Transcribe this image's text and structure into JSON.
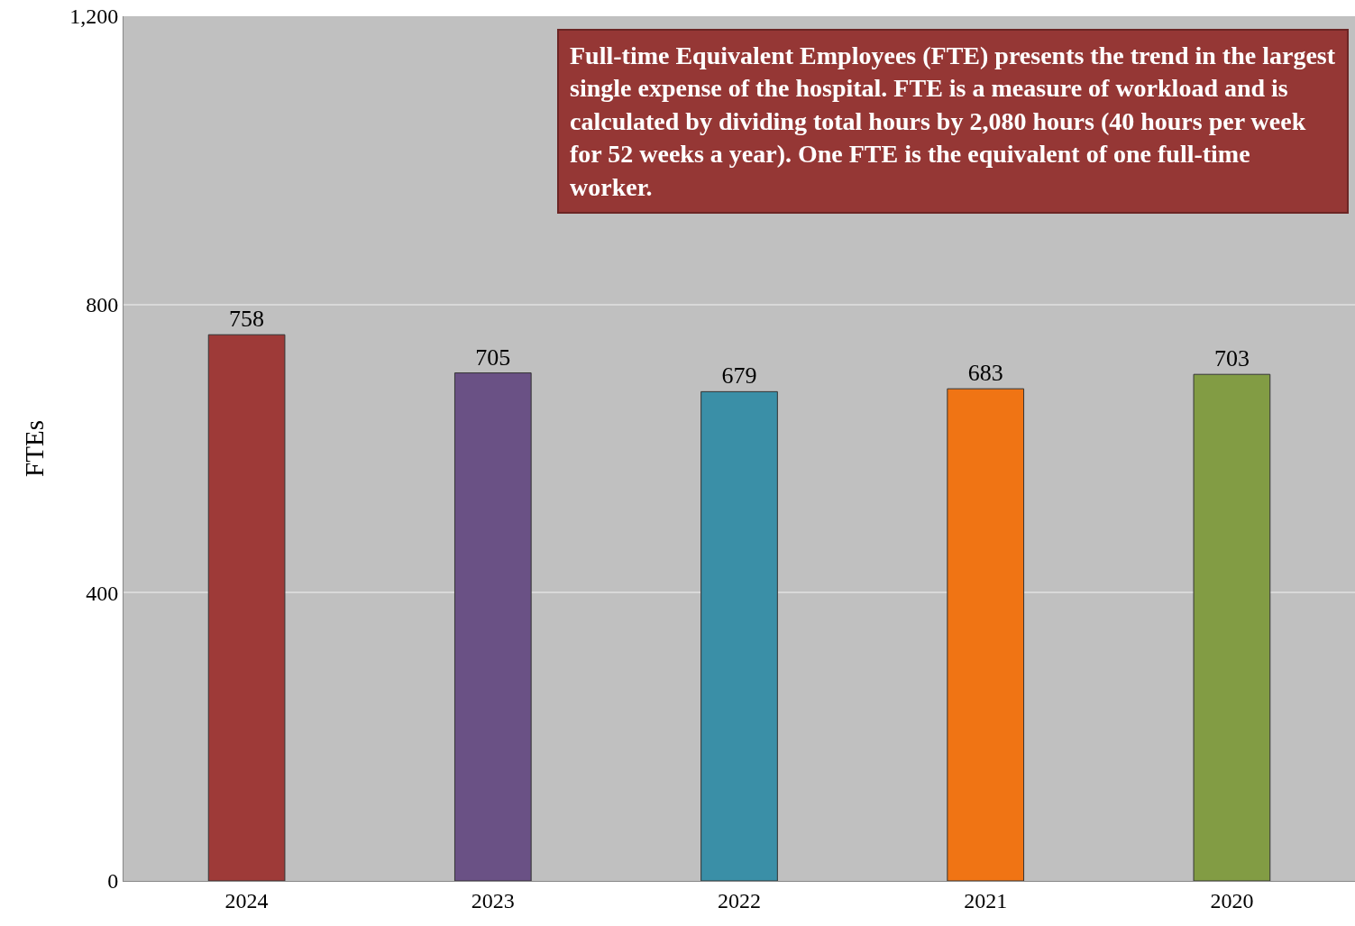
{
  "chart_data": {
    "type": "bar",
    "ylabel": "FTEs",
    "categories": [
      "2024",
      "2023",
      "2022",
      "2021",
      "2020"
    ],
    "values": [
      758,
      705,
      679,
      683,
      703
    ],
    "colors": [
      "#9e3a38",
      "#6a5185",
      "#3a8fa7",
      "#f07414",
      "#829c44"
    ],
    "data_labels": true,
    "ylim": [
      0,
      1200
    ],
    "yticks": [
      0,
      400,
      800,
      {
        "value": 1200,
        "label": "1,200"
      }
    ],
    "grid": "y",
    "annotations": [
      "Full-time Equivalent Employees (FTE) presents the trend in the largest single expense of the hospital. FTE is a measure of workload and is calculated by dividing total hours by 2,080 hours (40 hours per week for 52 weeks a year). One FTE is the equivalent of one full-time worker."
    ]
  }
}
